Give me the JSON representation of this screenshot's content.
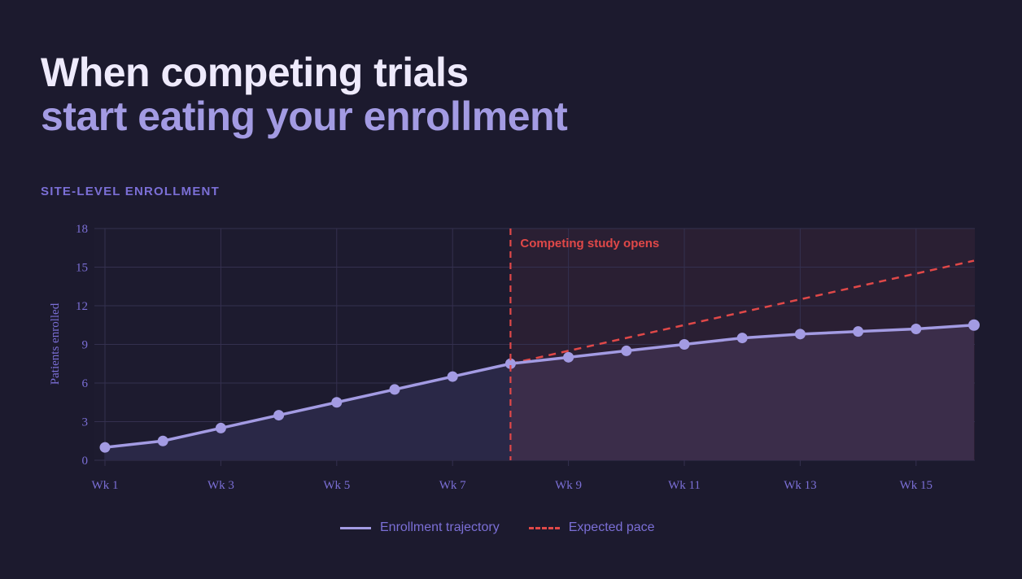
{
  "header": {
    "title_line1": "When competing trials",
    "title_line2": "start eating your enrollment",
    "section_label": "SITE-LEVEL ENROLLMENT"
  },
  "colors": {
    "background": "#1c1a2e",
    "trajectory": "#a39be3",
    "expected": "#e04848",
    "annotation": "#e04848",
    "axis_text": "#7b6fd6"
  },
  "legend": {
    "items": [
      {
        "label": "Enrollment trajectory",
        "style": "solid"
      },
      {
        "label": "Expected pace",
        "style": "dashed"
      }
    ]
  },
  "annotation": {
    "label": "Competing study opens",
    "x_week": 8
  },
  "chart_data": {
    "type": "line",
    "title": "SITE-LEVEL ENROLLMENT",
    "xlabel": "",
    "ylabel": "Patients enrolled",
    "ylim": [
      0,
      18
    ],
    "yticks": [
      0,
      3,
      6,
      9,
      12,
      15,
      18
    ],
    "xtick_labels": [
      "Wk 1",
      "Wk 3",
      "Wk 5",
      "Wk 7",
      "Wk 9",
      "Wk 11",
      "Wk 13",
      "Wk 15"
    ],
    "categories": [
      "Wk 1",
      "Wk 2",
      "Wk 3",
      "Wk 4",
      "Wk 5",
      "Wk 6",
      "Wk 7",
      "Wk 8",
      "Wk 9",
      "Wk 10",
      "Wk 11",
      "Wk 12",
      "Wk 13",
      "Wk 14",
      "Wk 15",
      "Wk 16"
    ],
    "grid": true,
    "legend_position": "bottom",
    "series": [
      {
        "name": "Enrollment trajectory",
        "style": "solid-with-markers-filled-area",
        "values": [
          1.0,
          1.5,
          2.5,
          3.5,
          4.5,
          5.5,
          6.5,
          7.5,
          8.0,
          8.5,
          9.0,
          9.5,
          9.8,
          10.0,
          10.2,
          10.5
        ]
      },
      {
        "name": "Expected pace",
        "style": "dashed",
        "x": [
          "Wk 8",
          "Wk 16"
        ],
        "values": [
          7.5,
          15.5
        ]
      }
    ],
    "annotations": [
      {
        "type": "vertical-dashed-line",
        "x": "Wk 8",
        "label": "Competing study opens",
        "shaded_region": [
          "Wk 8",
          "Wk 16"
        ]
      }
    ]
  }
}
